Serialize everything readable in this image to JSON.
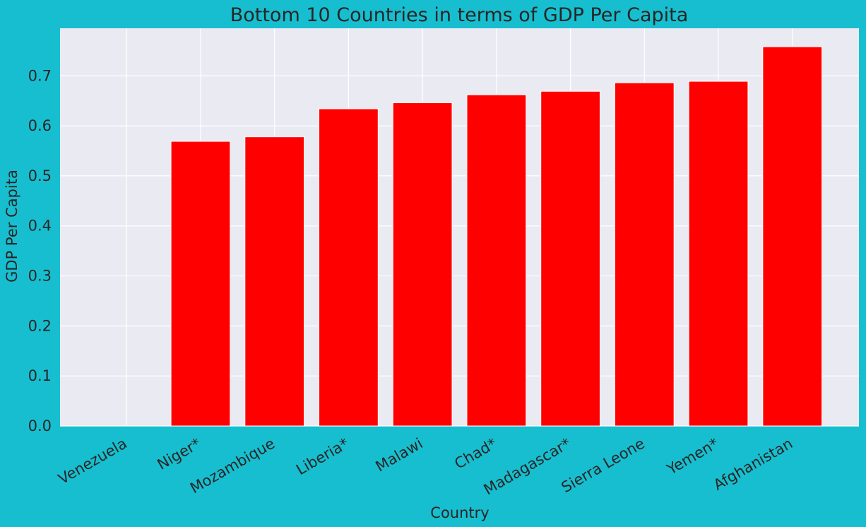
{
  "chart_data": {
    "type": "bar",
    "title": "Bottom 10 Countries in terms of GDP Per Capita",
    "xlabel": "Country",
    "ylabel": "GDP Per Capita",
    "categories": [
      "Venezuela",
      "Niger*",
      "Mozambique",
      "Liberia*",
      "Malawi",
      "Chad*",
      "Madagascar*",
      "Sierra Leone",
      "Yemen*",
      "Afghanistan"
    ],
    "values": [
      0.0,
      0.569,
      0.578,
      0.634,
      0.646,
      0.662,
      0.669,
      0.686,
      0.689,
      0.758
    ],
    "ylim": [
      0,
      0.795
    ],
    "yticks": [
      "0.0",
      "0.1",
      "0.2",
      "0.3",
      "0.4",
      "0.5",
      "0.6",
      "0.7"
    ],
    "grid": true,
    "colors": {
      "figure_background": "#17becf",
      "plot_background": "#eaeaf2",
      "grid": "#ffffff",
      "bar": "#ff0000",
      "text": "#262626"
    }
  }
}
